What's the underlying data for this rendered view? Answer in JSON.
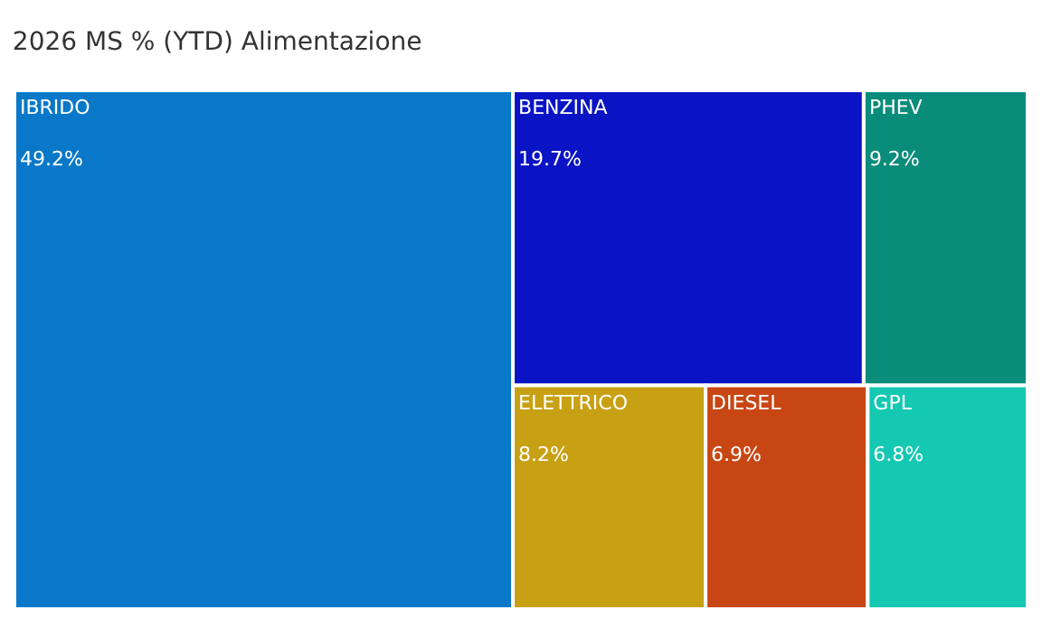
{
  "chart_data": {
    "type": "other",
    "title": "2026 MS % (YTD) Alimentazione",
    "categories": [
      "IBRIDO",
      "BENZINA",
      "PHEV",
      "ELETTRICO",
      "DIESEL",
      "GPL"
    ],
    "values": [
      49.2,
      19.7,
      9.2,
      8.2,
      6.9,
      6.8
    ],
    "value_labels": [
      "49.2%",
      "19.7%",
      "9.2%",
      "8.2%",
      "6.9%",
      "6.8%"
    ],
    "colors": [
      "#0a78c8",
      "#0a14c4",
      "#0a8c7a",
      "#c8a014",
      "#c84614",
      "#14c8b2"
    ],
    "data_labels": true
  }
}
